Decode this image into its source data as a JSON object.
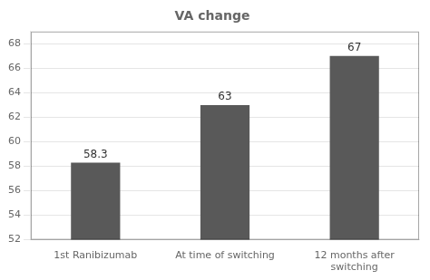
{
  "chart_data": {
    "type": "bar",
    "title": "VA change",
    "categories": [
      "1st Ranibizumab",
      "At time of switching",
      "12 months after\nswitching"
    ],
    "values": [
      58.3,
      63,
      67
    ],
    "color": "#595959",
    "ylim": [
      52,
      69
    ],
    "yticks": [
      52,
      54,
      56,
      58,
      60,
      62,
      64,
      66,
      68
    ],
    "grid": true,
    "data_labels": true
  }
}
